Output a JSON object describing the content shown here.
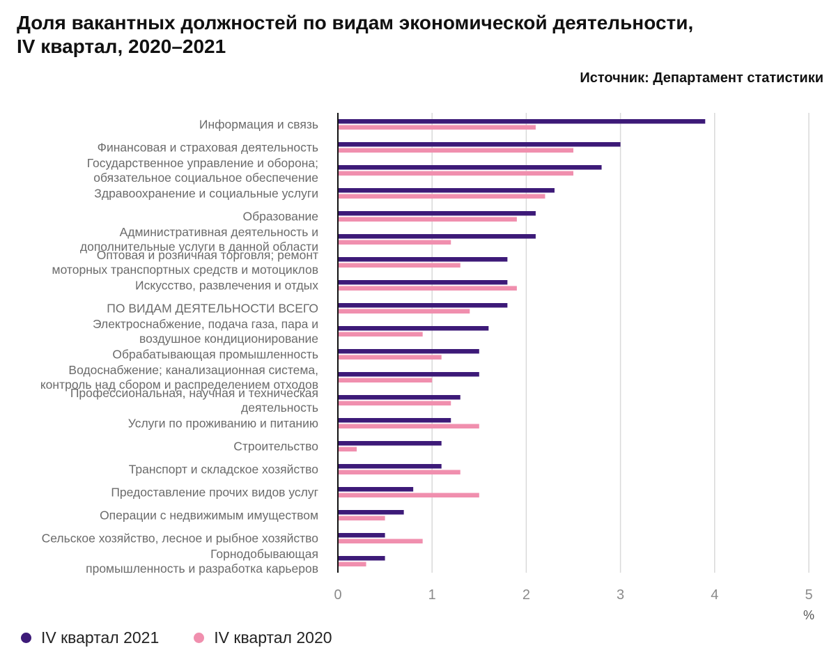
{
  "title_line1": "Доля вакантных должностей по видам экономической деятельности,",
  "title_line2": "IV квартал, 2020–2021",
  "source": "Источник: Департамент статистики",
  "colors": {
    "series_2021": "#3d1a78",
    "series_2020": "#f08fae",
    "grid": "#d9d9d9",
    "axis": "#111111",
    "label": "#6b6b6b"
  },
  "legend": [
    {
      "label": "IV квартал 2021",
      "color": "#3d1a78"
    },
    {
      "label": "IV квартал 2020",
      "color": "#f08fae"
    }
  ],
  "chart_data": {
    "type": "bar",
    "orientation": "horizontal",
    "unit_label": "%",
    "xlim": [
      0,
      5
    ],
    "xticks": [
      "0",
      "1",
      "2",
      "3",
      "4",
      "5"
    ],
    "grid": true,
    "categories": [
      [
        "Информация и связь"
      ],
      [
        "Финансовая и страховая деятельность"
      ],
      [
        "Государственное управление и оборона;",
        "обязательное социальное обеспечение"
      ],
      [
        "Здравоохранение и социальные услуги"
      ],
      [
        "Образование"
      ],
      [
        "Административная деятельность и",
        "дополнительные услуги в данной области"
      ],
      [
        "Оптовая и розничная торговля; ремонт",
        "моторных транспортных средств и мотоциклов"
      ],
      [
        "Искусство, развлечения и отдых"
      ],
      [
        "ПО ВИДАМ ДЕЯТЕЛЬНОСТИ ВСЕГО"
      ],
      [
        "Электроснабжение, подача газа, пара и",
        "воздушное кондиционирование"
      ],
      [
        "Обрабатывающая промышленность"
      ],
      [
        "Водоснабжение; канализационная система,",
        "контроль над сбором и распределением отходов"
      ],
      [
        "Профессиональная, научная и техническая",
        "деятельность"
      ],
      [
        "Услуги по проживанию и питанию"
      ],
      [
        "Строительство"
      ],
      [
        "Транспорт и складское хозяйство"
      ],
      [
        "Предоставление прочих видов услуг"
      ],
      [
        "Операции с недвижимым имуществом"
      ],
      [
        "Сельское хозяйство, лесное и рыбное хозяйство"
      ],
      [
        "Горнодобывающая",
        "промышленность и разработка карьеров"
      ]
    ],
    "series": [
      {
        "name": "IV квартал 2021",
        "values": [
          3.9,
          3.0,
          2.8,
          2.3,
          2.1,
          2.1,
          1.8,
          1.8,
          1.8,
          1.6,
          1.5,
          1.5,
          1.3,
          1.2,
          1.1,
          1.1,
          0.8,
          0.7,
          0.5,
          0.5
        ]
      },
      {
        "name": "IV квартал 2020",
        "values": [
          2.1,
          2.5,
          2.5,
          2.2,
          1.9,
          1.2,
          1.3,
          1.9,
          1.4,
          0.9,
          1.1,
          1.0,
          1.2,
          1.5,
          0.2,
          1.3,
          1.5,
          0.5,
          0.9,
          0.3
        ]
      }
    ]
  }
}
